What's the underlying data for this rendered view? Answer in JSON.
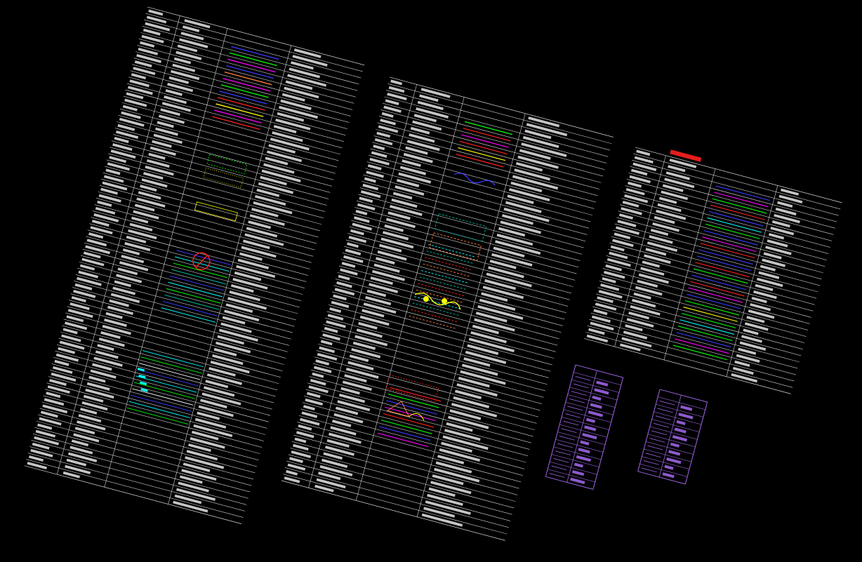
{
  "app": {
    "title": "",
    "background_color": "#000000"
  },
  "legend_panels": [
    {
      "id": "panel-top-left",
      "rotation_deg": 15,
      "rows": 30,
      "text": [
        "",
        "",
        "",
        ""
      ],
      "notes": [
        "",
        "",
        "",
        ""
      ]
    }
  ],
  "red_title": "",
  "text_samples": {
    "note_a": "",
    "note_b": "",
    "note_c": ""
  },
  "colors": {
    "line_white": "#ffffff",
    "magenta": "#ff00ff",
    "green": "#00ff00",
    "blue": "#3b3bff",
    "red": "#ff2020",
    "yellow": "#ffff00",
    "cyan": "#00ffff",
    "purple": "#b070ff",
    "orange": "#ff8040",
    "teal": "#00c0a0"
  }
}
